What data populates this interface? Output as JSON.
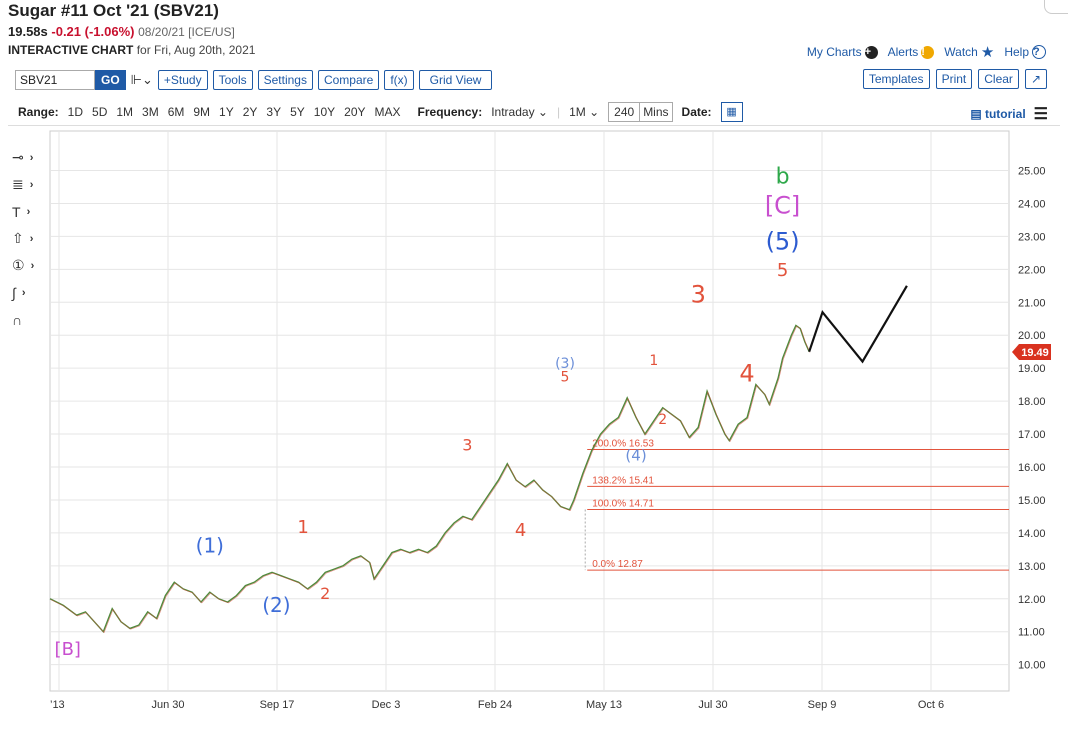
{
  "header": {
    "title": "Sugar #11 Oct '21 (SBV21)",
    "last": "19.58s",
    "change": "-0.21 (-1.06%)",
    "date_exchange": "08/20/21 [ICE/US]",
    "chart_label": "INTERACTIVE CHART",
    "chart_for": "for Fri, Aug 20th, 2021"
  },
  "toplinks": {
    "my_charts": "My Charts",
    "alerts": "Alerts",
    "watch": "Watch",
    "help": "Help"
  },
  "toolbar": {
    "symbol": "SBV21",
    "go": "GO",
    "chart_type_icon": "candles-icon",
    "study": "+Study",
    "tools": "Tools",
    "settings": "Settings",
    "compare": "Compare",
    "fx": "f(x)",
    "grid_view": "Grid View",
    "templates": "Templates",
    "print": "Print",
    "clear": "Clear",
    "expand_icon": "expand-icon"
  },
  "range_bar": {
    "range_label": "Range:",
    "ranges": [
      "1D",
      "5D",
      "1M",
      "3M",
      "6M",
      "9M",
      "1Y",
      "2Y",
      "3Y",
      "5Y",
      "10Y",
      "20Y",
      "MAX"
    ],
    "frequency_label": "Frequency:",
    "frequency": "Intraday",
    "period": "1M",
    "minutes": "240",
    "mins_label": "Mins",
    "date_label": "Date:",
    "tutorial": "tutorial"
  },
  "drawing_tools": [
    "crosshair-icon",
    "fib-icon",
    "text-icon",
    "arrow-icon",
    "counter-icon",
    "curve-icon",
    "magnet-icon"
  ],
  "chart_data": {
    "type": "line",
    "ylim": [
      9.2,
      26.2
    ],
    "yticks": [
      "10.00",
      "11.00",
      "12.00",
      "13.00",
      "14.00",
      "15.00",
      "16.00",
      "17.00",
      "18.00",
      "19.00",
      "20.00",
      "21.00",
      "22.00",
      "23.00",
      "24.00",
      "25.00"
    ],
    "xticks": [
      "13",
      "Jun 30",
      "Sep 17",
      "Dec 3",
      "Feb 24",
      "May 13",
      "Jul 30",
      "Sep 9",
      "Oct 6"
    ],
    "last_price": "19.49",
    "price_series": [
      [
        0,
        12.0
      ],
      [
        3,
        11.8
      ],
      [
        6,
        11.5
      ],
      [
        8,
        11.6
      ],
      [
        10,
        11.3
      ],
      [
        12,
        11.0
      ],
      [
        14,
        11.7
      ],
      [
        16,
        11.3
      ],
      [
        18,
        11.1
      ],
      [
        20,
        11.2
      ],
      [
        22,
        11.6
      ],
      [
        24,
        11.4
      ],
      [
        26,
        12.1
      ],
      [
        28,
        12.5
      ],
      [
        30,
        12.3
      ],
      [
        32,
        12.2
      ],
      [
        34,
        11.9
      ],
      [
        36,
        12.2
      ],
      [
        38,
        12.0
      ],
      [
        40,
        11.9
      ],
      [
        42,
        12.1
      ],
      [
        44,
        12.4
      ],
      [
        46,
        12.5
      ],
      [
        48,
        12.7
      ],
      [
        50,
        12.8
      ],
      [
        52,
        12.7
      ],
      [
        54,
        12.6
      ],
      [
        56,
        12.5
      ],
      [
        58,
        12.3
      ],
      [
        60,
        12.5
      ],
      [
        62,
        12.8
      ],
      [
        64,
        12.9
      ],
      [
        66,
        13.0
      ],
      [
        68,
        13.2
      ],
      [
        70,
        13.3
      ],
      [
        72,
        13.1
      ],
      [
        73,
        12.6
      ],
      [
        75,
        13.0
      ],
      [
        77,
        13.4
      ],
      [
        79,
        13.5
      ],
      [
        81,
        13.4
      ],
      [
        83,
        13.5
      ],
      [
        85,
        13.4
      ],
      [
        87,
        13.6
      ],
      [
        89,
        14.0
      ],
      [
        91,
        14.3
      ],
      [
        93,
        14.5
      ],
      [
        95,
        14.4
      ],
      [
        97,
        14.8
      ],
      [
        99,
        15.2
      ],
      [
        101,
        15.6
      ],
      [
        103,
        16.1
      ],
      [
        105,
        15.6
      ],
      [
        107,
        15.4
      ],
      [
        109,
        15.6
      ],
      [
        111,
        15.3
      ],
      [
        113,
        15.1
      ],
      [
        115,
        14.8
      ],
      [
        117,
        14.7
      ],
      [
        118,
        15.0
      ],
      [
        120,
        15.8
      ],
      [
        122,
        16.5
      ],
      [
        124,
        17.0
      ],
      [
        126,
        17.3
      ],
      [
        128,
        17.5
      ],
      [
        130,
        18.1
      ],
      [
        132,
        17.5
      ],
      [
        134,
        17.0
      ],
      [
        136,
        17.4
      ],
      [
        138,
        17.8
      ],
      [
        140,
        17.6
      ],
      [
        142,
        17.4
      ],
      [
        144,
        16.9
      ],
      [
        146,
        17.2
      ],
      [
        148,
        18.3
      ],
      [
        150,
        17.6
      ],
      [
        152,
        17.0
      ],
      [
        153,
        16.8
      ],
      [
        155,
        17.3
      ],
      [
        157,
        17.5
      ],
      [
        159,
        18.5
      ],
      [
        161,
        18.2
      ],
      [
        162,
        17.9
      ],
      [
        164,
        18.7
      ],
      [
        165,
        19.3
      ],
      [
        167,
        20.0
      ],
      [
        168,
        20.3
      ],
      [
        169,
        20.2
      ],
      [
        170,
        19.8
      ],
      [
        171,
        19.5
      ]
    ],
    "x_domain": [
      0,
      216
    ],
    "projection": [
      [
        171,
        19.5
      ],
      [
        174,
        20.7
      ],
      [
        183,
        19.2
      ],
      [
        193,
        21.5
      ]
    ],
    "fib_levels": [
      {
        "label": "200.0% 16.53",
        "value": 16.53
      },
      {
        "label": "138.2% 15.41",
        "value": 15.41
      },
      {
        "label": "100.0% 14.71",
        "value": 14.71
      },
      {
        "label": "0.0% 12.87",
        "value": 12.87
      }
    ],
    "fib_x_start": 121,
    "wave_labels": [
      {
        "text": "[B]",
        "x": 4,
        "y": 10.3,
        "color": "#c84fcf",
        "size": 18
      },
      {
        "text": "(1)",
        "x": 36,
        "y": 13.4,
        "color": "#3f6ed8",
        "size": 20
      },
      {
        "text": "(2)",
        "x": 51,
        "y": 11.6,
        "color": "#3f6ed8",
        "size": 20
      },
      {
        "text": "1",
        "x": 57,
        "y": 14.0,
        "color": "#e2533c",
        "size": 18
      },
      {
        "text": "2",
        "x": 62,
        "y": 12.0,
        "color": "#e2533c",
        "size": 16
      },
      {
        "text": "3",
        "x": 94,
        "y": 16.5,
        "color": "#e2533c",
        "size": 16
      },
      {
        "text": "4",
        "x": 106,
        "y": 13.9,
        "color": "#e2533c",
        "size": 18
      },
      {
        "text": "(3)",
        "x": 116,
        "y": 19.0,
        "color": "#6c8fd8",
        "size": 14
      },
      {
        "text": "5",
        "x": 116,
        "y": 18.6,
        "color": "#e2533c",
        "size": 14
      },
      {
        "text": "(4)",
        "x": 132,
        "y": 16.2,
        "color": "#6c8fd8",
        "size": 15
      },
      {
        "text": "1",
        "x": 136,
        "y": 19.1,
        "color": "#e2533c",
        "size": 14
      },
      {
        "text": "2",
        "x": 138,
        "y": 17.3,
        "color": "#e2533c",
        "size": 14
      },
      {
        "text": "3",
        "x": 146,
        "y": 21.0,
        "color": "#e2533c",
        "size": 24
      },
      {
        "text": "4",
        "x": 157,
        "y": 18.6,
        "color": "#e2533c",
        "size": 24
      },
      {
        "text": "5",
        "x": 165,
        "y": 21.8,
        "color": "#e2533c",
        "size": 18
      },
      {
        "text": "(5)",
        "x": 165,
        "y": 22.6,
        "color": "#2c5bd0",
        "size": 24
      },
      {
        "text": "[C]",
        "x": 165,
        "y": 23.7,
        "color": "#c84fcf",
        "size": 24
      },
      {
        "text": "b",
        "x": 165,
        "y": 24.6,
        "color": "#2ea84a",
        "size": 22
      }
    ]
  }
}
